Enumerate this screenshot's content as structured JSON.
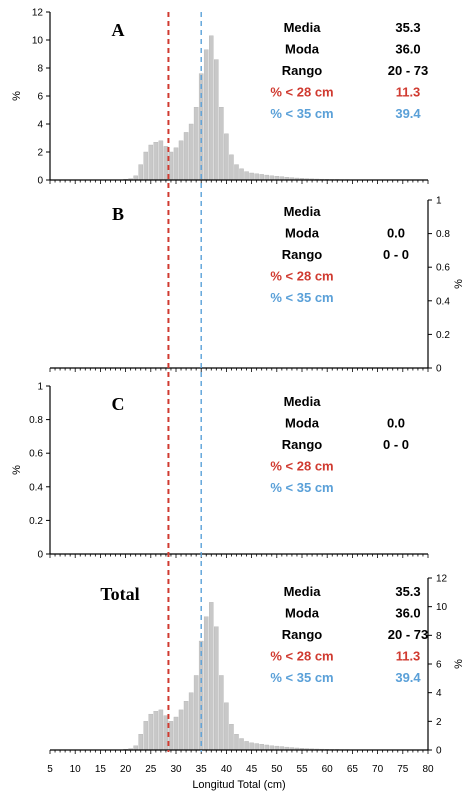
{
  "colors": {
    "bar": "#c8c8c8",
    "bar_edge": "#b4b4b4",
    "axis": "#000000",
    "threshold_28": "#d03a30",
    "threshold_35": "#5aa0d8",
    "text": "#000000"
  },
  "chart_data": [
    {
      "type": "bar",
      "panel_label": "A",
      "ylabel": "%",
      "y_axis_side": "left",
      "ylim": [
        0,
        12
      ],
      "yticks": [
        "0",
        "2",
        "4",
        "6",
        "8",
        "10",
        "12"
      ],
      "xlim": [
        5,
        80
      ],
      "grid": false,
      "reference_lines": [
        28.5,
        35
      ],
      "x": [
        20,
        21,
        22,
        23,
        24,
        25,
        26,
        27,
        28,
        29,
        30,
        31,
        32,
        33,
        34,
        35,
        36,
        37,
        38,
        39,
        40,
        41,
        42,
        43,
        44,
        45,
        46,
        47,
        48,
        49,
        50,
        51,
        52,
        53,
        54,
        55,
        56,
        57,
        58,
        59,
        60,
        61,
        62,
        63,
        64,
        65,
        66,
        67,
        68,
        69,
        70,
        71,
        72,
        73
      ],
      "values": [
        0.05,
        0.1,
        0.3,
        1.1,
        2.0,
        2.5,
        2.7,
        2.8,
        2.4,
        2.0,
        2.3,
        2.8,
        3.4,
        4.0,
        5.2,
        7.6,
        9.3,
        10.3,
        8.6,
        5.2,
        3.3,
        1.8,
        1.1,
        0.8,
        0.6,
        0.5,
        0.45,
        0.4,
        0.35,
        0.3,
        0.27,
        0.24,
        0.2,
        0.17,
        0.14,
        0.12,
        0.1,
        0.08,
        0.07,
        0.06,
        0.05,
        0.04,
        0.04,
        0.03,
        0.03,
        0.02,
        0.02,
        0.02,
        0.02,
        0.01,
        0.01,
        0.01,
        0.01,
        0.01
      ],
      "stats": [
        {
          "label": "Media",
          "value": "35.3",
          "color": "black"
        },
        {
          "label": "Moda",
          "value": "36.0",
          "color": "black"
        },
        {
          "label": "Rango",
          "value": "20 - 73",
          "color": "black"
        },
        {
          "label": "% < 28 cm",
          "value": "11.3",
          "color": "red"
        },
        {
          "label": "% < 35 cm",
          "value": "39.4",
          "color": "blue"
        }
      ]
    },
    {
      "type": "bar",
      "panel_label": "B",
      "ylabel": "%",
      "y_axis_side": "right",
      "ylim": [
        0,
        1
      ],
      "yticks": [
        "0",
        "0.2",
        "0.4",
        "0.6",
        "0.8",
        "1"
      ],
      "xlim": [
        5,
        80
      ],
      "grid": false,
      "reference_lines": [
        28.5,
        35
      ],
      "x": [],
      "values": [],
      "stats": [
        {
          "label": "Media",
          "value": "",
          "color": "black"
        },
        {
          "label": "Moda",
          "value": "0.0",
          "color": "black"
        },
        {
          "label": "Rango",
          "value": "0 - 0",
          "color": "black"
        },
        {
          "label": "% < 28 cm",
          "value": "",
          "color": "red"
        },
        {
          "label": "% < 35 cm",
          "value": "",
          "color": "blue"
        }
      ]
    },
    {
      "type": "bar",
      "panel_label": "C",
      "ylabel": "%",
      "y_axis_side": "left",
      "ylim": [
        0,
        1
      ],
      "yticks": [
        "0",
        "0.2",
        "0.4",
        "0.6",
        "0.8",
        "1"
      ],
      "xlim": [
        5,
        80
      ],
      "grid": false,
      "reference_lines": [
        28.5,
        35
      ],
      "x": [],
      "values": [],
      "stats": [
        {
          "label": "Media",
          "value": "",
          "color": "black"
        },
        {
          "label": "Moda",
          "value": "0.0",
          "color": "black"
        },
        {
          "label": "Rango",
          "value": "0 - 0",
          "color": "black"
        },
        {
          "label": "% < 28 cm",
          "value": "",
          "color": "red"
        },
        {
          "label": "% < 35 cm",
          "value": "",
          "color": "blue"
        }
      ]
    },
    {
      "type": "bar",
      "panel_label": "Total",
      "ylabel": "%",
      "y_axis_side": "right",
      "ylim": [
        0,
        12
      ],
      "yticks": [
        "0",
        "2",
        "4",
        "6",
        "8",
        "10",
        "12"
      ],
      "xlim": [
        5,
        80
      ],
      "grid": false,
      "reference_lines": [
        28.5,
        35
      ],
      "x": [
        20,
        21,
        22,
        23,
        24,
        25,
        26,
        27,
        28,
        29,
        30,
        31,
        32,
        33,
        34,
        35,
        36,
        37,
        38,
        39,
        40,
        41,
        42,
        43,
        44,
        45,
        46,
        47,
        48,
        49,
        50,
        51,
        52,
        53,
        54,
        55,
        56,
        57,
        58,
        59,
        60,
        61,
        62,
        63,
        64,
        65,
        66,
        67,
        68,
        69,
        70,
        71,
        72,
        73
      ],
      "values": [
        0.05,
        0.1,
        0.3,
        1.1,
        2.0,
        2.5,
        2.7,
        2.8,
        2.4,
        2.0,
        2.3,
        2.8,
        3.4,
        4.0,
        5.2,
        7.6,
        9.3,
        10.3,
        8.6,
        5.2,
        3.3,
        1.8,
        1.1,
        0.8,
        0.6,
        0.5,
        0.45,
        0.4,
        0.35,
        0.3,
        0.27,
        0.24,
        0.2,
        0.17,
        0.14,
        0.12,
        0.1,
        0.08,
        0.07,
        0.06,
        0.05,
        0.04,
        0.04,
        0.03,
        0.03,
        0.02,
        0.02,
        0.02,
        0.02,
        0.01,
        0.01,
        0.01,
        0.01,
        0.01
      ],
      "stats": [
        {
          "label": "Media",
          "value": "35.3",
          "color": "black"
        },
        {
          "label": "Moda",
          "value": "36.0",
          "color": "black"
        },
        {
          "label": "Rango",
          "value": "20 - 73",
          "color": "black"
        },
        {
          "label": "% < 28 cm",
          "value": "11.3",
          "color": "red"
        },
        {
          "label": "% < 35 cm",
          "value": "39.4",
          "color": "blue"
        }
      ]
    }
  ],
  "shared_x_axis": {
    "xlabel": "Longitud Total (cm)",
    "xticks": [
      "5",
      "10",
      "15",
      "20",
      "25",
      "30",
      "35",
      "40",
      "45",
      "50",
      "55",
      "60",
      "65",
      "70",
      "75",
      "80"
    ]
  }
}
